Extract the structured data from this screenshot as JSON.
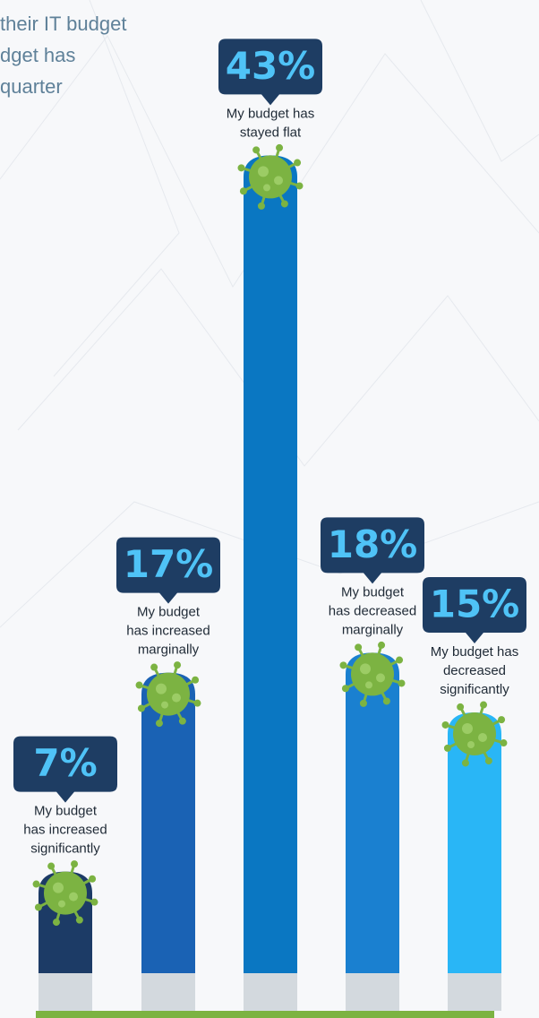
{
  "chart_data": {
    "type": "bar",
    "title_lines": [
      "their IT budget",
      "dget has",
      "quarter"
    ],
    "categories": [
      [
        "My budget",
        "has increased",
        "significantly"
      ],
      [
        "My budget",
        "has increased",
        "marginally"
      ],
      [
        "My budget has",
        "stayed flat"
      ],
      [
        "My budget",
        "has decreased",
        "marginally"
      ],
      [
        "My budget has",
        "decreased",
        "significantly"
      ]
    ],
    "values": [
      7,
      17,
      43,
      18,
      15
    ],
    "value_labels": [
      "7%",
      "17%",
      "43%",
      "18%",
      "15%"
    ],
    "colors": [
      "#1c3b66",
      "#1a62b4",
      "#0a77c2",
      "#1a80d0",
      "#29b6f6"
    ]
  }
}
